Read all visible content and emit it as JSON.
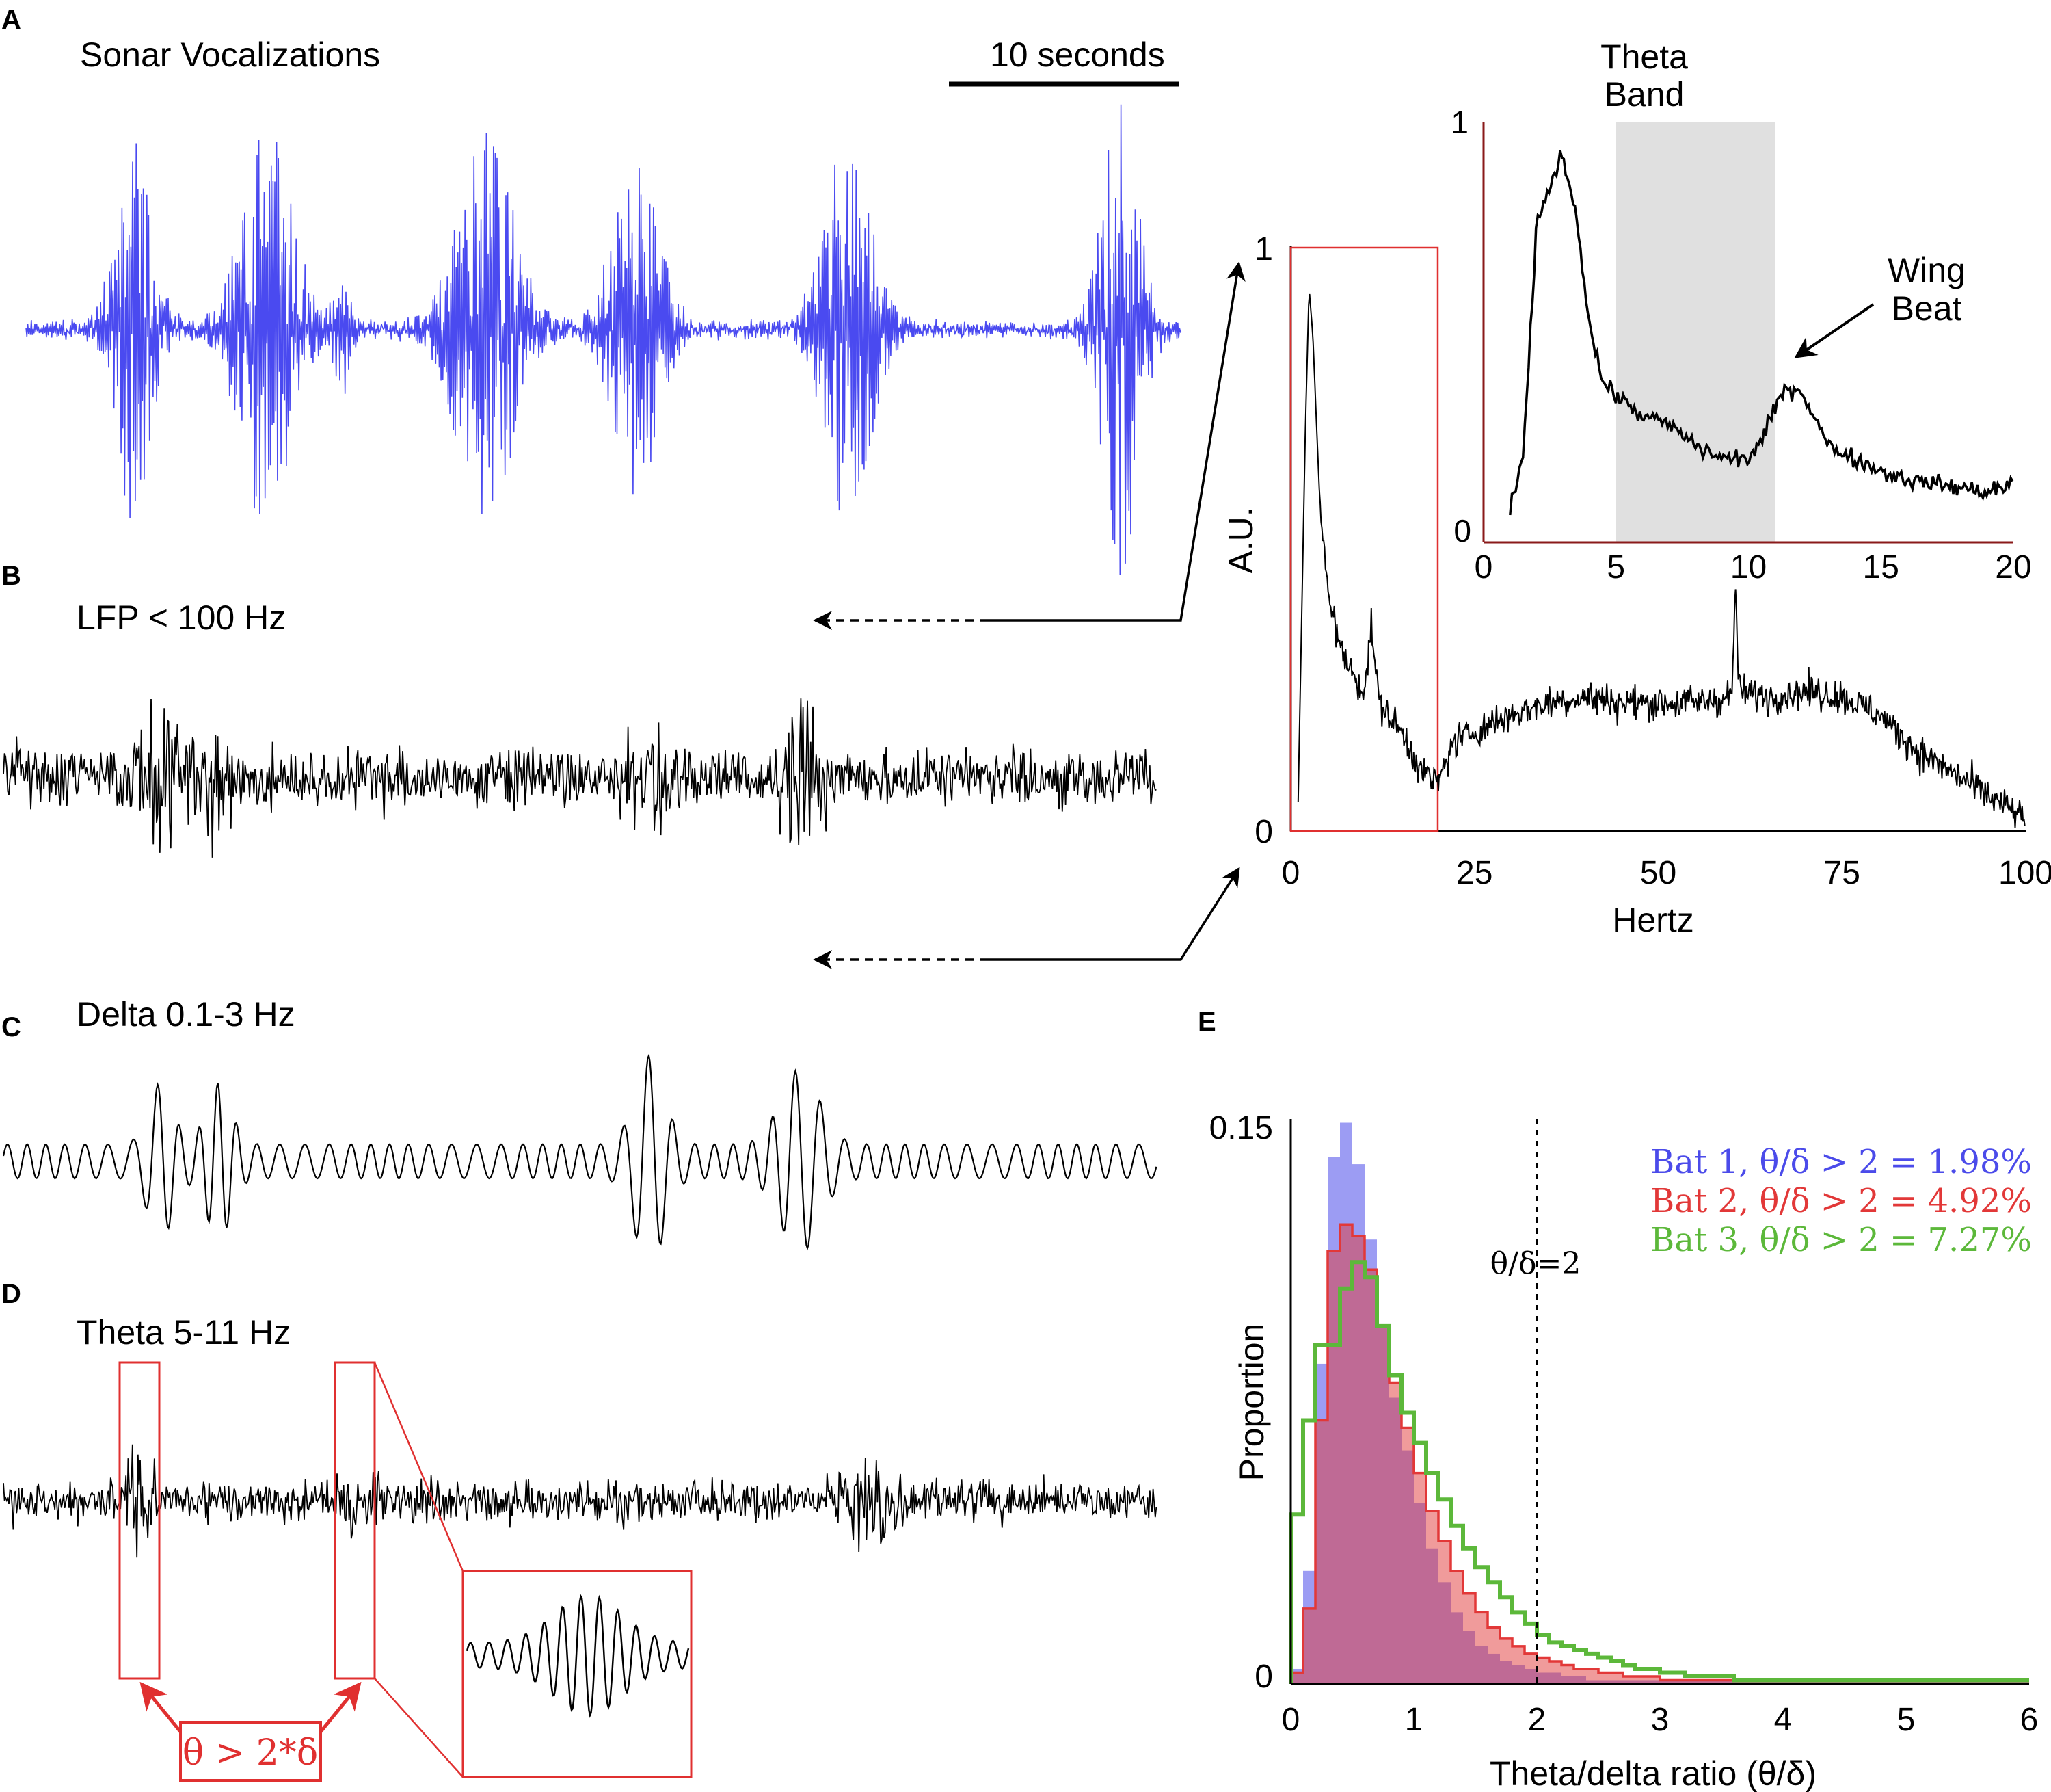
{
  "panels": {
    "a": {
      "letter": "A",
      "title": "Sonar Vocalizations",
      "scalebar_label": "10 seconds"
    },
    "b": {
      "letter": "B",
      "title": "LFP < 100 Hz"
    },
    "c": {
      "letter": "C",
      "title": "Delta 0.1-3 Hz"
    },
    "d": {
      "letter": "D",
      "title": "Theta 5-11 Hz",
      "annotation": "θ > 2*δ"
    },
    "e": {
      "letter": "E"
    }
  },
  "colors": {
    "sonar": "#4a4af0",
    "trace": "#000000",
    "highlight": "#e03030",
    "theta_band": "#e0e0e0",
    "bat1": "#4b4bea",
    "bat2": "#e23838",
    "bat3": "#5cb83a"
  },
  "chart_data": [
    {
      "type": "line",
      "id": "psd_full",
      "xlabel": "Hertz",
      "ylabel": "A.U.",
      "xlim": [
        0,
        100
      ],
      "ylim": [
        0,
        1
      ],
      "xticks": [
        "0",
        "25",
        "50",
        "75",
        "100"
      ],
      "yticks": [
        "0",
        "1"
      ],
      "series": [
        {
          "x": [
            1,
            2,
            2.5,
            3,
            4,
            5,
            7,
            10,
            11,
            12,
            15,
            18,
            20,
            22,
            25,
            30,
            35,
            40,
            45,
            50,
            55,
            60,
            60.5,
            61,
            65,
            70,
            75,
            80,
            85,
            90,
            95,
            100
          ],
          "values": [
            0.05,
            0.7,
            0.93,
            0.85,
            0.55,
            0.42,
            0.3,
            0.24,
            0.35,
            0.22,
            0.17,
            0.1,
            0.08,
            0.15,
            0.17,
            0.2,
            0.22,
            0.23,
            0.22,
            0.22,
            0.22,
            0.23,
            0.42,
            0.24,
            0.23,
            0.24,
            0.23,
            0.2,
            0.14,
            0.1,
            0.06,
            0.02
          ]
        }
      ]
    },
    {
      "type": "line",
      "id": "psd_inset",
      "xlim": [
        0,
        20
      ],
      "ylim": [
        0,
        1
      ],
      "xticks": [
        "0",
        "5",
        "10",
        "15",
        "20"
      ],
      "yticks": [
        "0",
        "1"
      ],
      "shaded_band": {
        "label": "Theta Band",
        "from": 5,
        "to": 11
      },
      "annotation": "Wing Beat",
      "annotation_x": 12,
      "series": [
        {
          "x": [
            1,
            1.5,
            2,
            2.5,
            3,
            3.5,
            4,
            4.5,
            5,
            6,
            7,
            8,
            9,
            10,
            10.5,
            11,
            11.5,
            12,
            12.5,
            13,
            14,
            15,
            16,
            17,
            18,
            19,
            20
          ],
          "values": [
            0.08,
            0.2,
            0.75,
            0.85,
            0.92,
            0.78,
            0.52,
            0.38,
            0.35,
            0.3,
            0.28,
            0.23,
            0.2,
            0.2,
            0.24,
            0.32,
            0.37,
            0.36,
            0.3,
            0.23,
            0.2,
            0.17,
            0.15,
            0.14,
            0.13,
            0.12,
            0.14
          ]
        }
      ]
    },
    {
      "type": "bar",
      "id": "theta_delta_hist",
      "xlabel": "Theta/delta ratio (θ/δ)",
      "ylabel": "Proportion",
      "xlim": [
        0,
        6
      ],
      "ylim": [
        0,
        0.15
      ],
      "xticks": [
        "0",
        "1",
        "2",
        "3",
        "4",
        "5",
        "6"
      ],
      "yticks": [
        "0",
        "0.15"
      ],
      "threshold": {
        "x": 2,
        "label": "θ/δ=2"
      },
      "bin_width": 0.1,
      "bin_start": 0,
      "series": [
        {
          "name": "Bat 1",
          "label": "Bat 1, θ/δ > 2 = 1.98%",
          "style": "filled",
          "values": [
            0.004,
            0.03,
            0.085,
            0.14,
            0.149,
            0.138,
            0.118,
            0.095,
            0.076,
            0.062,
            0.048,
            0.036,
            0.027,
            0.019,
            0.014,
            0.01,
            0.008,
            0.006,
            0.005,
            0.004,
            0.003,
            0.003,
            0.002,
            0.002,
            0.001,
            0.001,
            0.001,
            0.001,
            0.001,
            0.001,
            0.001,
            0.001,
            0.001,
            0.001,
            0.001,
            0.001,
            0.001,
            0.001,
            0.001,
            0.001,
            0.001,
            0.001,
            0.001,
            0.001,
            0.001,
            0.001,
            0.001,
            0.001,
            0.001,
            0.001,
            0.001,
            0.001,
            0.001,
            0.001,
            0.001,
            0.001,
            0.001,
            0.001,
            0.001,
            0.001
          ]
        },
        {
          "name": "Bat 2",
          "label": "Bat 2, θ/δ > 2 = 4.92%",
          "style": "filled-outline",
          "values": [
            0.003,
            0.02,
            0.07,
            0.115,
            0.122,
            0.119,
            0.11,
            0.095,
            0.08,
            0.068,
            0.056,
            0.046,
            0.038,
            0.03,
            0.024,
            0.019,
            0.015,
            0.012,
            0.01,
            0.008,
            0.007,
            0.006,
            0.005,
            0.004,
            0.004,
            0.003,
            0.003,
            0.002,
            0.002,
            0.002,
            0.001,
            0.001,
            0.001,
            0.001,
            0.001,
            0.001,
            0.001,
            0.001,
            0.001,
            0.001,
            0.001,
            0.001,
            0.001,
            0.001,
            0.001,
            0.001,
            0.001,
            0.001,
            0.001,
            0.001,
            0.001,
            0.001,
            0.001,
            0.001,
            0.001,
            0.001,
            0.001,
            0.001,
            0.001,
            0.001
          ]
        },
        {
          "name": "Bat 3",
          "label": "Bat 3, θ/δ > 2 = 7.27%",
          "style": "outline",
          "values": [
            0.045,
            0.07,
            0.09,
            0.09,
            0.105,
            0.112,
            0.108,
            0.095,
            0.082,
            0.072,
            0.064,
            0.056,
            0.049,
            0.042,
            0.036,
            0.031,
            0.027,
            0.023,
            0.019,
            0.016,
            0.013,
            0.011,
            0.01,
            0.009,
            0.008,
            0.007,
            0.006,
            0.005,
            0.004,
            0.004,
            0.003,
            0.003,
            0.002,
            0.002,
            0.002,
            0.002,
            0.001,
            0.001,
            0.001,
            0.001,
            0.001,
            0.001,
            0.001,
            0.001,
            0.001,
            0.001,
            0.001,
            0.001,
            0.001,
            0.001,
            0.001,
            0.001,
            0.001,
            0.001,
            0.001,
            0.001,
            0.001,
            0.001,
            0.001,
            0.001
          ]
        }
      ]
    }
  ]
}
